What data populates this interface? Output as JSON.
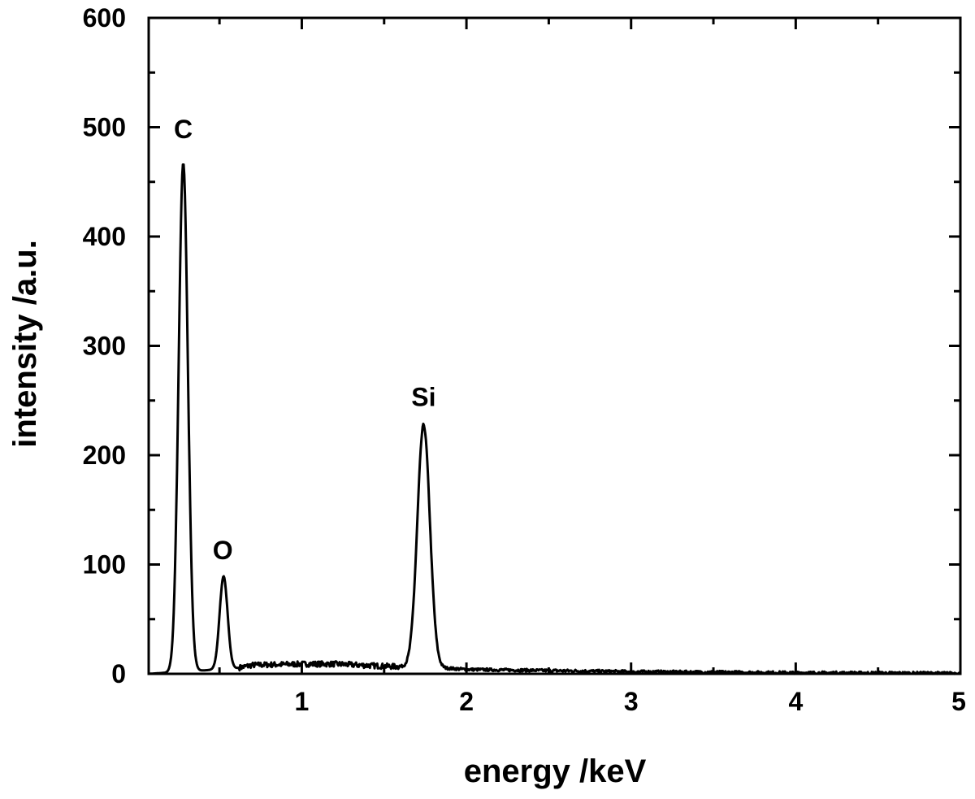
{
  "chart_data": {
    "type": "line",
    "title": "",
    "xlabel": "energy /keV",
    "ylabel": "intensity /a.u.",
    "xlim": [
      0.07,
      5
    ],
    "ylim": [
      0,
      600
    ],
    "x_ticks": [
      1,
      2,
      3,
      4,
      5
    ],
    "y_ticks": [
      0,
      100,
      200,
      300,
      400,
      500,
      600
    ],
    "grid": false,
    "line_color": "#000000",
    "series": [
      {
        "values": "spectrum",
        "peaks": [
          {
            "element": "C",
            "center_keV": 0.28,
            "height": 465
          },
          {
            "element": "O",
            "center_keV": 0.525,
            "height": 85
          },
          {
            "element": "Si",
            "center_keV": 1.74,
            "height": 222
          }
        ],
        "background": [
          {
            "x": 0.07,
            "y": 0
          },
          {
            "x": 0.6,
            "y": 5
          },
          {
            "x": 0.7,
            "y": 8
          },
          {
            "x": 1.0,
            "y": 9
          },
          {
            "x": 1.2,
            "y": 9
          },
          {
            "x": 1.5,
            "y": 7
          },
          {
            "x": 1.9,
            "y": 5
          },
          {
            "x": 2.0,
            "y": 4
          },
          {
            "x": 2.5,
            "y": 3
          },
          {
            "x": 3.0,
            "y": 2
          },
          {
            "x": 4.0,
            "y": 1
          },
          {
            "x": 5.0,
            "y": 0.5
          }
        ]
      }
    ],
    "annotations": [
      {
        "text": "C",
        "x": 0.28,
        "y": 490
      },
      {
        "text": "O",
        "x": 0.52,
        "y": 105
      },
      {
        "text": "Si",
        "x": 1.74,
        "y": 245
      }
    ]
  }
}
